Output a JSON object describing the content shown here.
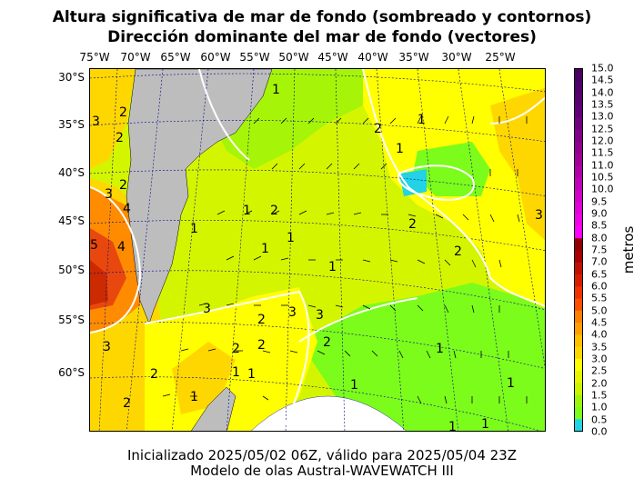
{
  "title": {
    "line1": "Altura significativa de mar de fondo (sombreado y contornos)",
    "line2": "Dirección dominante del mar de fondo (vectores)"
  },
  "footer": {
    "line1": "Inicializado 2025/05/02 06Z, válido para 2025/05/04 23Z",
    "line2": "Modelo de olas Austral-WAVEWATCH III"
  },
  "lon_labels": [
    "75°W",
    "70°W",
    "65°W",
    "60°W",
    "55°W",
    "50°W",
    "45°W",
    "40°W",
    "35°W",
    "30°W",
    "25°W"
  ],
  "lat_labels": [
    "30°S",
    "35°S",
    "40°S",
    "45°S",
    "50°S",
    "55°S",
    "60°S"
  ],
  "colorbar": {
    "title": "metros",
    "ticks": [
      "0.0",
      "0.5",
      "1.0",
      "1.5",
      "2.0",
      "2.5",
      "3.0",
      "3.5",
      "4.0",
      "4.5",
      "5.0",
      "5.5",
      "6.0",
      "6.5",
      "7.0",
      "7.5",
      "8.0",
      "8.5",
      "9.0",
      "9.5",
      "10.0",
      "10.5",
      "11.0",
      "11.5",
      "12.0",
      "12.5",
      "13.0",
      "13.5",
      "14.0",
      "14.5",
      "15.0"
    ],
    "colors": [
      "#22d3e6",
      "#7cfc1a",
      "#9cf50a",
      "#c9f500",
      "#e6f500",
      "#ffff00",
      "#ffd700",
      "#ffc000",
      "#ffa000",
      "#ff7f00",
      "#ff5000",
      "#f03000",
      "#d81c00",
      "#c01000",
      "#a80000",
      "#900000",
      "#ff00ff",
      "#f000e8",
      "#e000d8",
      "#d000c8",
      "#c000b8",
      "#b000a8",
      "#a00098",
      "#900090",
      "#800088",
      "#700080",
      "#600078",
      "#580070",
      "#500068",
      "#480060"
    ]
  },
  "contour_labels": [
    "1",
    "2",
    "3",
    "4",
    "5"
  ],
  "colors": {
    "land": "#bdbdbd",
    "ice_free_white": "#ffffff",
    "grid": "#00008b"
  }
}
